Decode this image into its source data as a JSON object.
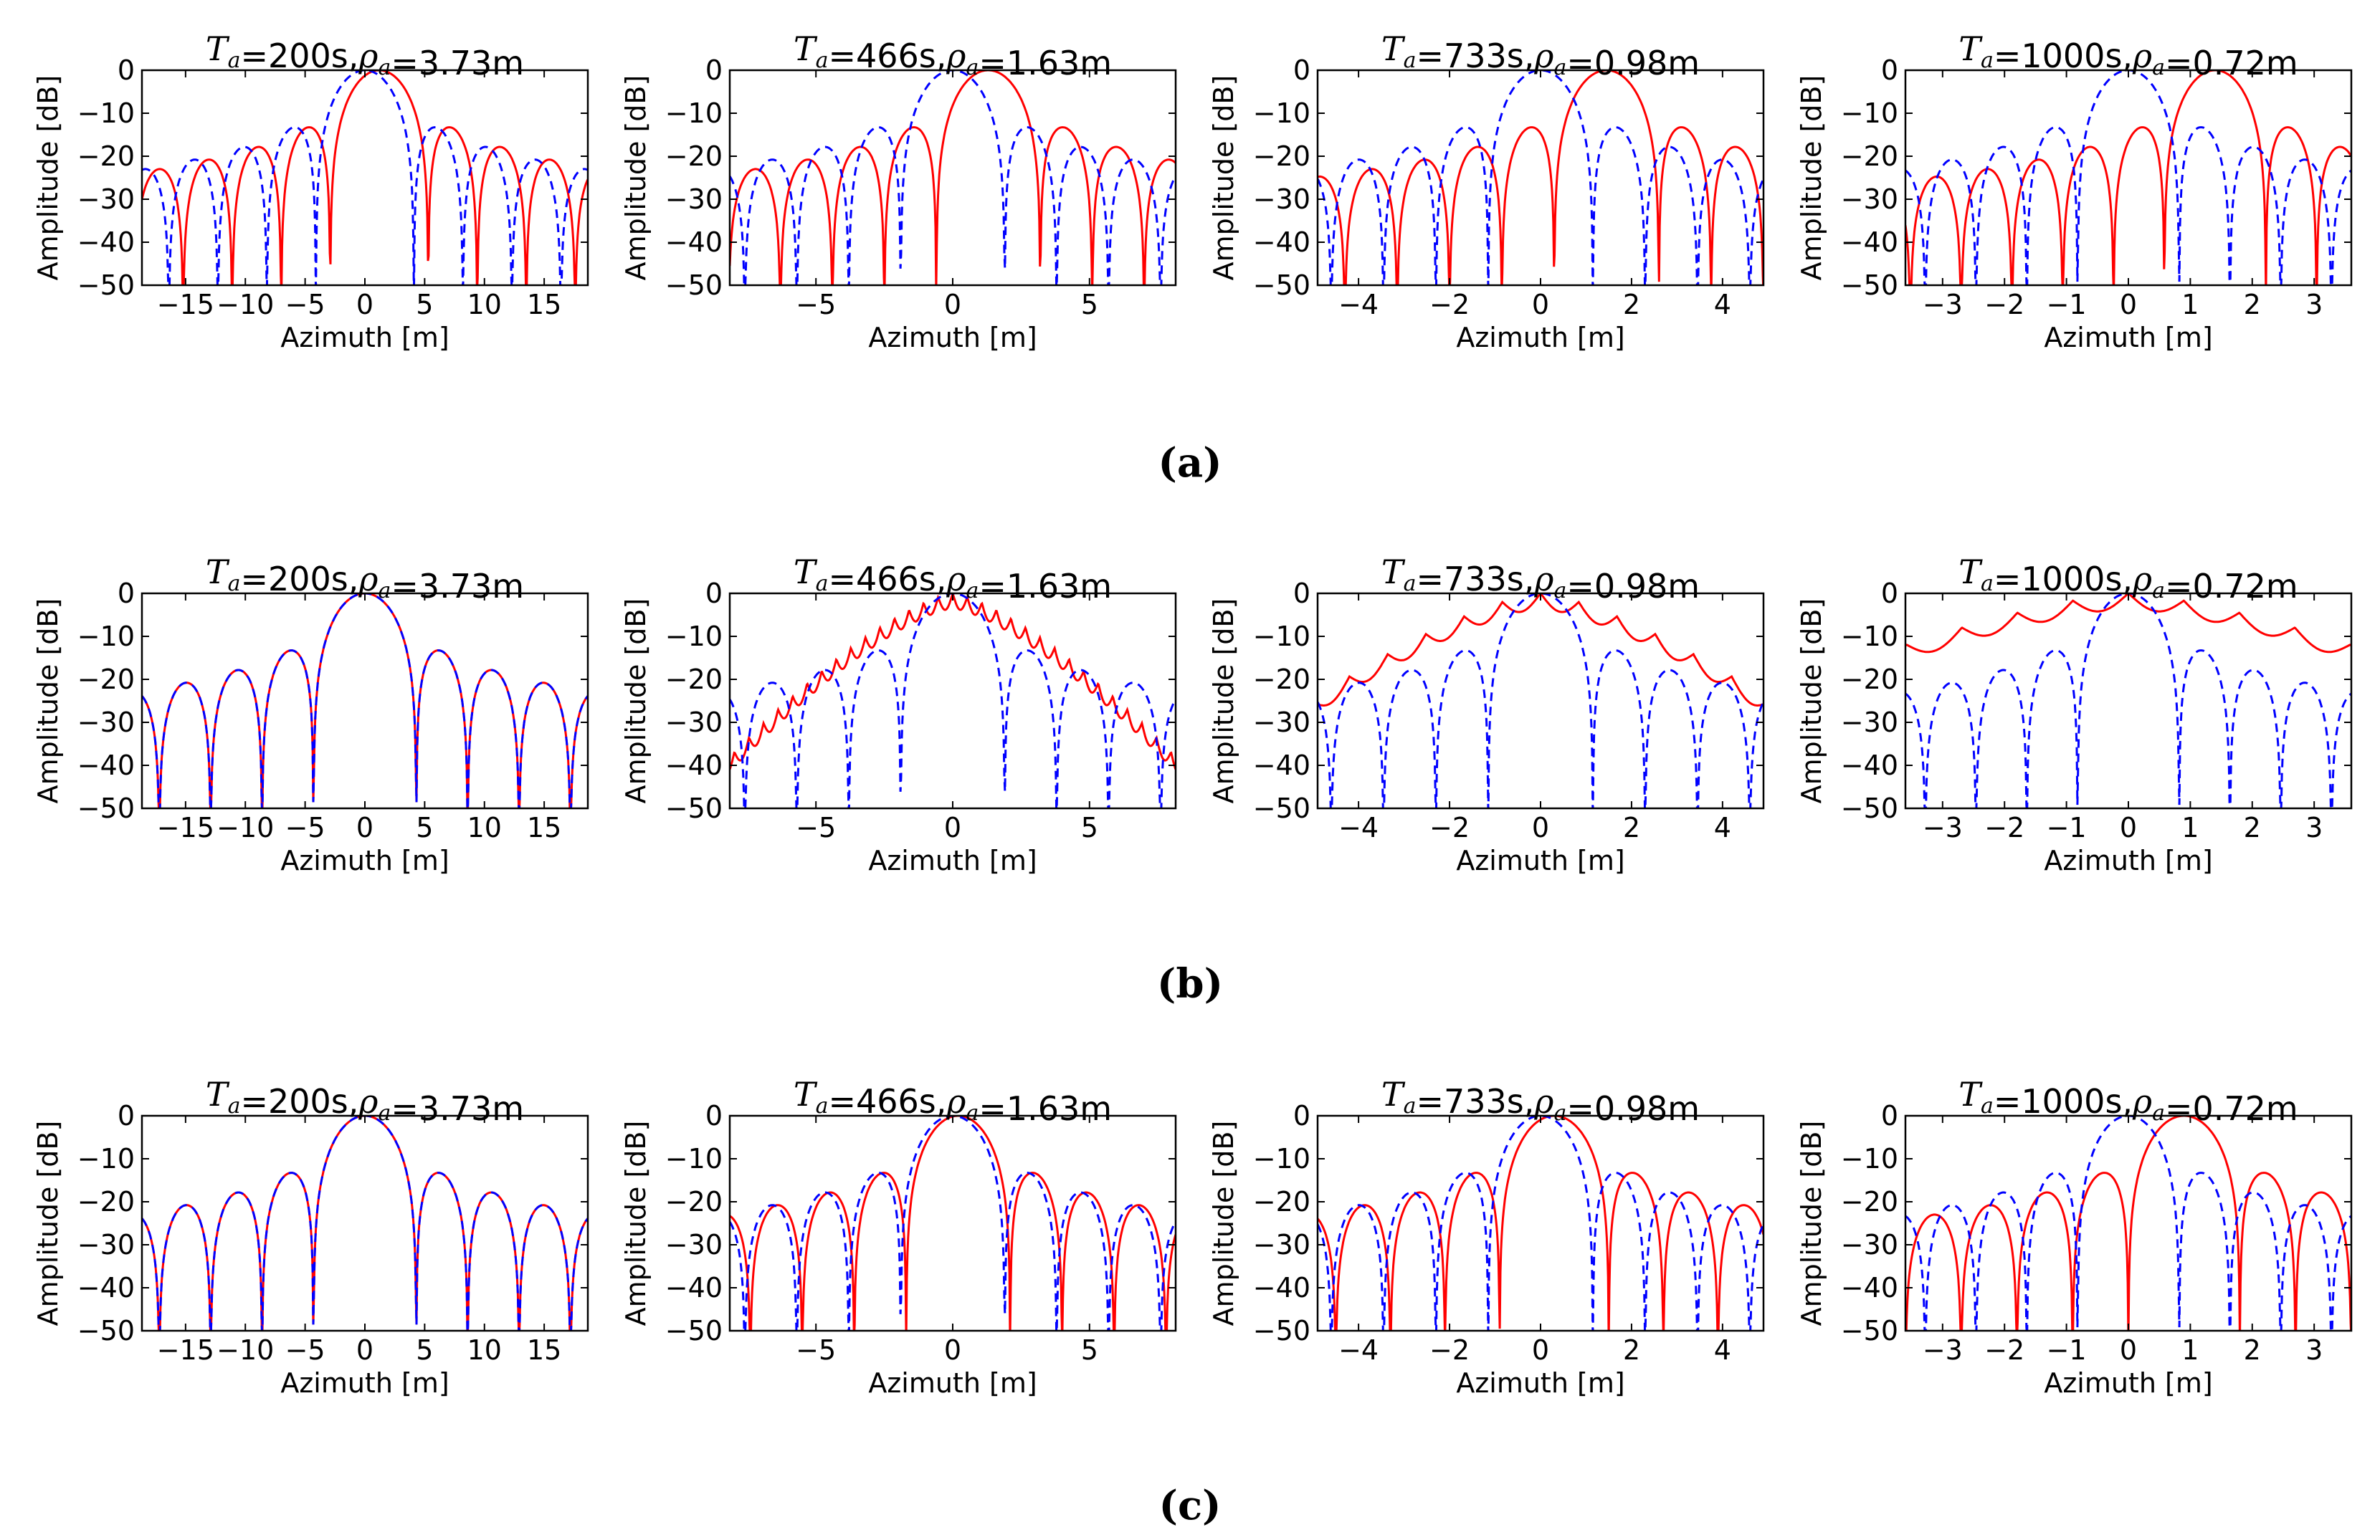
{
  "figure": {
    "captions": [
      "(a)",
      "(b)",
      "(c)"
    ]
  },
  "series_styles": {
    "solid": {
      "color": "#ff0000",
      "dash": "none"
    },
    "dashed": {
      "color": "#0000ff",
      "dash": "dashed"
    }
  },
  "chart_data": [
    {
      "type": "line",
      "row": 0,
      "col": 0,
      "title": "T_a=200s,ρ_a=3.73m",
      "xlabel": "Azimuth [m]",
      "ylabel": "Amplitude [dB]",
      "xlim": [
        -18.65,
        18.65
      ],
      "ylim": [
        -50,
        0
      ],
      "xticks": [
        -15,
        -10,
        -5,
        0,
        5,
        10,
        15
      ],
      "yticks": [
        0,
        -10,
        -20,
        -30,
        -40,
        -50
      ],
      "series": [
        {
          "name": "red",
          "style": "solid",
          "kind": "sinc",
          "peak_x": 1.2,
          "width": 4.1,
          "floor": -22
        },
        {
          "name": "blue",
          "style": "dashed",
          "kind": "sinc",
          "peak_x": 0,
          "width": 4.1
        }
      ]
    },
    {
      "type": "line",
      "row": 0,
      "col": 1,
      "title": "T_a=466s,ρ_a=1.63m",
      "xlabel": "Azimuth [m]",
      "ylabel": "Amplitude [dB]",
      "xlim": [
        -8.15,
        8.15
      ],
      "ylim": [
        -50,
        0
      ],
      "xticks": [
        -5,
        0,
        5
      ],
      "yticks": [
        0,
        -10,
        -20,
        -30,
        -40,
        -50
      ],
      "series": [
        {
          "name": "red",
          "style": "solid",
          "kind": "sinc",
          "peak_x": 1.3,
          "width": 1.9
        },
        {
          "name": "blue",
          "style": "dashed",
          "kind": "sinc",
          "peak_x": 0,
          "width": 1.9
        }
      ]
    },
    {
      "type": "line",
      "row": 0,
      "col": 2,
      "title": "T_a=733s,ρ_a=0.98m",
      "xlabel": "Azimuth [m]",
      "ylabel": "Amplitude [dB]",
      "xlim": [
        -4.9,
        4.9
      ],
      "ylim": [
        -50,
        0
      ],
      "xticks": [
        -4,
        -2,
        0,
        2,
        4
      ],
      "yticks": [
        0,
        -10,
        -20,
        -30,
        -40,
        -50
      ],
      "series": [
        {
          "name": "red",
          "style": "solid",
          "kind": "sinc",
          "peak_x": 1.45,
          "width": 1.15
        },
        {
          "name": "blue",
          "style": "dashed",
          "kind": "sinc",
          "peak_x": 0,
          "width": 1.15
        }
      ]
    },
    {
      "type": "line",
      "row": 0,
      "col": 3,
      "title": "T_a=1000s,ρ_a=0.72m",
      "xlabel": "Azimuth [m]",
      "ylabel": "Amplitude [dB]",
      "xlim": [
        -3.6,
        3.6
      ],
      "ylim": [
        -50,
        0
      ],
      "xticks": [
        -3,
        -2,
        -1,
        0,
        1,
        2,
        3
      ],
      "yticks": [
        0,
        -10,
        -20,
        -30,
        -40,
        -50
      ],
      "series": [
        {
          "name": "red",
          "style": "solid",
          "kind": "sinc",
          "peak_x": 1.4,
          "width": 0.82
        },
        {
          "name": "blue",
          "style": "dashed",
          "kind": "sinc",
          "peak_x": 0,
          "width": 0.82
        }
      ]
    },
    {
      "type": "line",
      "row": 1,
      "col": 0,
      "title": "T_a=200s,ρ_a=3.73m",
      "xlabel": "Azimuth [m]",
      "ylabel": "Amplitude [dB]",
      "xlim": [
        -18.65,
        18.65
      ],
      "ylim": [
        -50,
        0
      ],
      "xticks": [
        -15,
        -10,
        -5,
        0,
        5,
        10,
        15
      ],
      "yticks": [
        0,
        -10,
        -20,
        -30,
        -40,
        -50
      ],
      "series": [
        {
          "name": "red",
          "style": "solid",
          "kind": "sinc",
          "peak_x": 0,
          "width": 4.3
        },
        {
          "name": "blue",
          "style": "dashed",
          "kind": "sinc",
          "peak_x": 0,
          "width": 4.3
        }
      ]
    },
    {
      "type": "line",
      "row": 1,
      "col": 1,
      "title": "T_a=466s,ρ_a=1.63m",
      "xlabel": "Azimuth [m]",
      "ylabel": "Amplitude [dB]",
      "xlim": [
        -8.15,
        8.15
      ],
      "ylim": [
        -50,
        0
      ],
      "xticks": [
        -5,
        0,
        5
      ],
      "yticks": [
        0,
        -10,
        -20,
        -30,
        -40,
        -50
      ],
      "series": [
        {
          "name": "red",
          "style": "solid",
          "kind": "broad",
          "peak_x": 0,
          "width": 1.9,
          "floor": -38
        },
        {
          "name": "blue",
          "style": "dashed",
          "kind": "sinc",
          "peak_x": 0,
          "width": 1.9
        }
      ]
    },
    {
      "type": "line",
      "row": 1,
      "col": 2,
      "title": "T_a=733s,ρ_a=0.98m",
      "xlabel": "Azimuth [m]",
      "ylabel": "Amplitude [dB]",
      "xlim": [
        -4.9,
        4.9
      ],
      "ylim": [
        -50,
        0
      ],
      "xticks": [
        -4,
        -2,
        0,
        2,
        4
      ],
      "yticks": [
        0,
        -10,
        -20,
        -30,
        -40,
        -50
      ],
      "series": [
        {
          "name": "red",
          "style": "solid",
          "kind": "broad",
          "peak_x": 0,
          "width": 3.0,
          "floor": -24
        },
        {
          "name": "blue",
          "style": "dashed",
          "kind": "sinc",
          "peak_x": 0,
          "width": 1.15
        }
      ]
    },
    {
      "type": "line",
      "row": 1,
      "col": 3,
      "title": "T_a=1000s,ρ_a=0.72m",
      "xlabel": "Azimuth [m]",
      "ylabel": "Amplitude [dB]",
      "xlim": [
        -3.6,
        3.6
      ],
      "ylim": [
        -50,
        0
      ],
      "xticks": [
        -3,
        -2,
        -1,
        0,
        1,
        2,
        3
      ],
      "yticks": [
        0,
        -10,
        -20,
        -30,
        -40,
        -50
      ],
      "series": [
        {
          "name": "red",
          "style": "solid",
          "kind": "broad",
          "peak_x": 0,
          "width": 3.2,
          "floor": -12
        },
        {
          "name": "blue",
          "style": "dashed",
          "kind": "sinc",
          "peak_x": 0,
          "width": 0.82
        }
      ]
    },
    {
      "type": "line",
      "row": 2,
      "col": 0,
      "title": "T_a=200s,ρ_a=3.73m",
      "xlabel": "Azimuth [m]",
      "ylabel": "Amplitude [dB]",
      "xlim": [
        -18.65,
        18.65
      ],
      "ylim": [
        -50,
        0
      ],
      "xticks": [
        -15,
        -10,
        -5,
        0,
        5,
        10,
        15
      ],
      "yticks": [
        0,
        -10,
        -20,
        -30,
        -40,
        -50
      ],
      "series": [
        {
          "name": "red",
          "style": "solid",
          "kind": "sinc",
          "peak_x": 0,
          "width": 4.3
        },
        {
          "name": "blue",
          "style": "dashed",
          "kind": "sinc",
          "peak_x": 0,
          "width": 4.3
        }
      ]
    },
    {
      "type": "line",
      "row": 2,
      "col": 1,
      "title": "T_a=466s,ρ_a=1.63m",
      "xlabel": "Azimuth [m]",
      "ylabel": "Amplitude [dB]",
      "xlim": [
        -8.15,
        8.15
      ],
      "ylim": [
        -50,
        0
      ],
      "xticks": [
        -5,
        0,
        5
      ],
      "yticks": [
        0,
        -10,
        -20,
        -30,
        -40,
        -50
      ],
      "series": [
        {
          "name": "red",
          "style": "solid",
          "kind": "sinc",
          "peak_x": 0.2,
          "width": 1.9
        },
        {
          "name": "blue",
          "style": "dashed",
          "kind": "sinc",
          "peak_x": 0,
          "width": 1.9
        }
      ]
    },
    {
      "type": "line",
      "row": 2,
      "col": 2,
      "title": "T_a=733s,ρ_a=0.98m",
      "xlabel": "Azimuth [m]",
      "ylabel": "Amplitude [dB]",
      "xlim": [
        -4.9,
        4.9
      ],
      "ylim": [
        -50,
        0
      ],
      "xticks": [
        -4,
        -2,
        0,
        2,
        4
      ],
      "yticks": [
        0,
        -10,
        -20,
        -30,
        -40,
        -50
      ],
      "series": [
        {
          "name": "red",
          "style": "solid",
          "kind": "sinc",
          "peak_x": 0.3,
          "width": 1.2
        },
        {
          "name": "blue",
          "style": "dashed",
          "kind": "sinc",
          "peak_x": 0,
          "width": 1.15
        }
      ]
    },
    {
      "type": "line",
      "row": 2,
      "col": 3,
      "title": "T_a=1000s,ρ_a=0.72m",
      "xlabel": "Azimuth [m]",
      "ylabel": "Amplitude [dB]",
      "xlim": [
        -3.6,
        3.6
      ],
      "ylim": [
        -50,
        0
      ],
      "xticks": [
        -3,
        -2,
        -1,
        0,
        1,
        2,
        3
      ],
      "yticks": [
        0,
        -10,
        -20,
        -30,
        -40,
        -50
      ],
      "series": [
        {
          "name": "red",
          "style": "solid",
          "kind": "sinc",
          "peak_x": 0.9,
          "width": 0.9
        },
        {
          "name": "blue",
          "style": "dashed",
          "kind": "sinc",
          "peak_x": 0,
          "width": 0.82
        }
      ]
    }
  ]
}
